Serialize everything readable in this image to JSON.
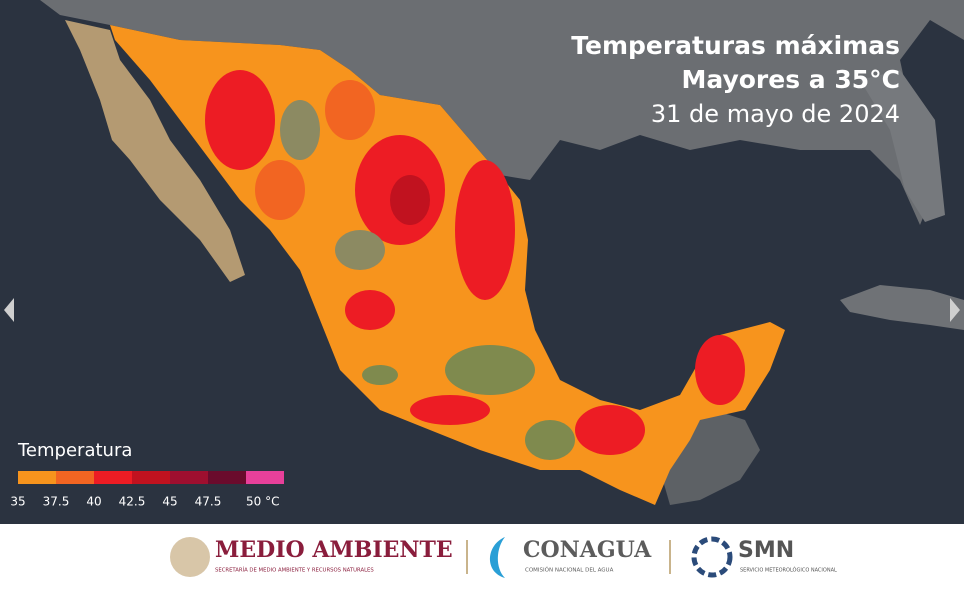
{
  "title": {
    "line1": "Temperaturas máximas",
    "line2": "Mayores a 35°C",
    "date": "31 de mayo de 2024"
  },
  "legend": {
    "title": "Temperatura",
    "items": [
      {
        "label": "35",
        "color": "#f7941d"
      },
      {
        "label": "37.5",
        "color": "#f26522"
      },
      {
        "label": "40",
        "color": "#ed1c24"
      },
      {
        "label": "42.5",
        "color": "#c1121f"
      },
      {
        "label": "45",
        "color": "#9e0f2f"
      },
      {
        "label": "47.5",
        "color": "#6a0b2c"
      },
      {
        "label": "50 °C",
        "color": "#e8409a"
      }
    ]
  },
  "footer": {
    "semarnat": {
      "name": "MEDIO AMBIENTE",
      "sub": "SECRETARÍA DE MEDIO AMBIENTE Y RECURSOS NATURALES"
    },
    "conagua": {
      "name": "CONAGUA",
      "sub": "COMISIÓN NACIONAL DEL AGUA"
    },
    "smn": {
      "name": "SMN",
      "sub": "SERVICIO METEOROLÓGICO NACIONAL"
    }
  }
}
